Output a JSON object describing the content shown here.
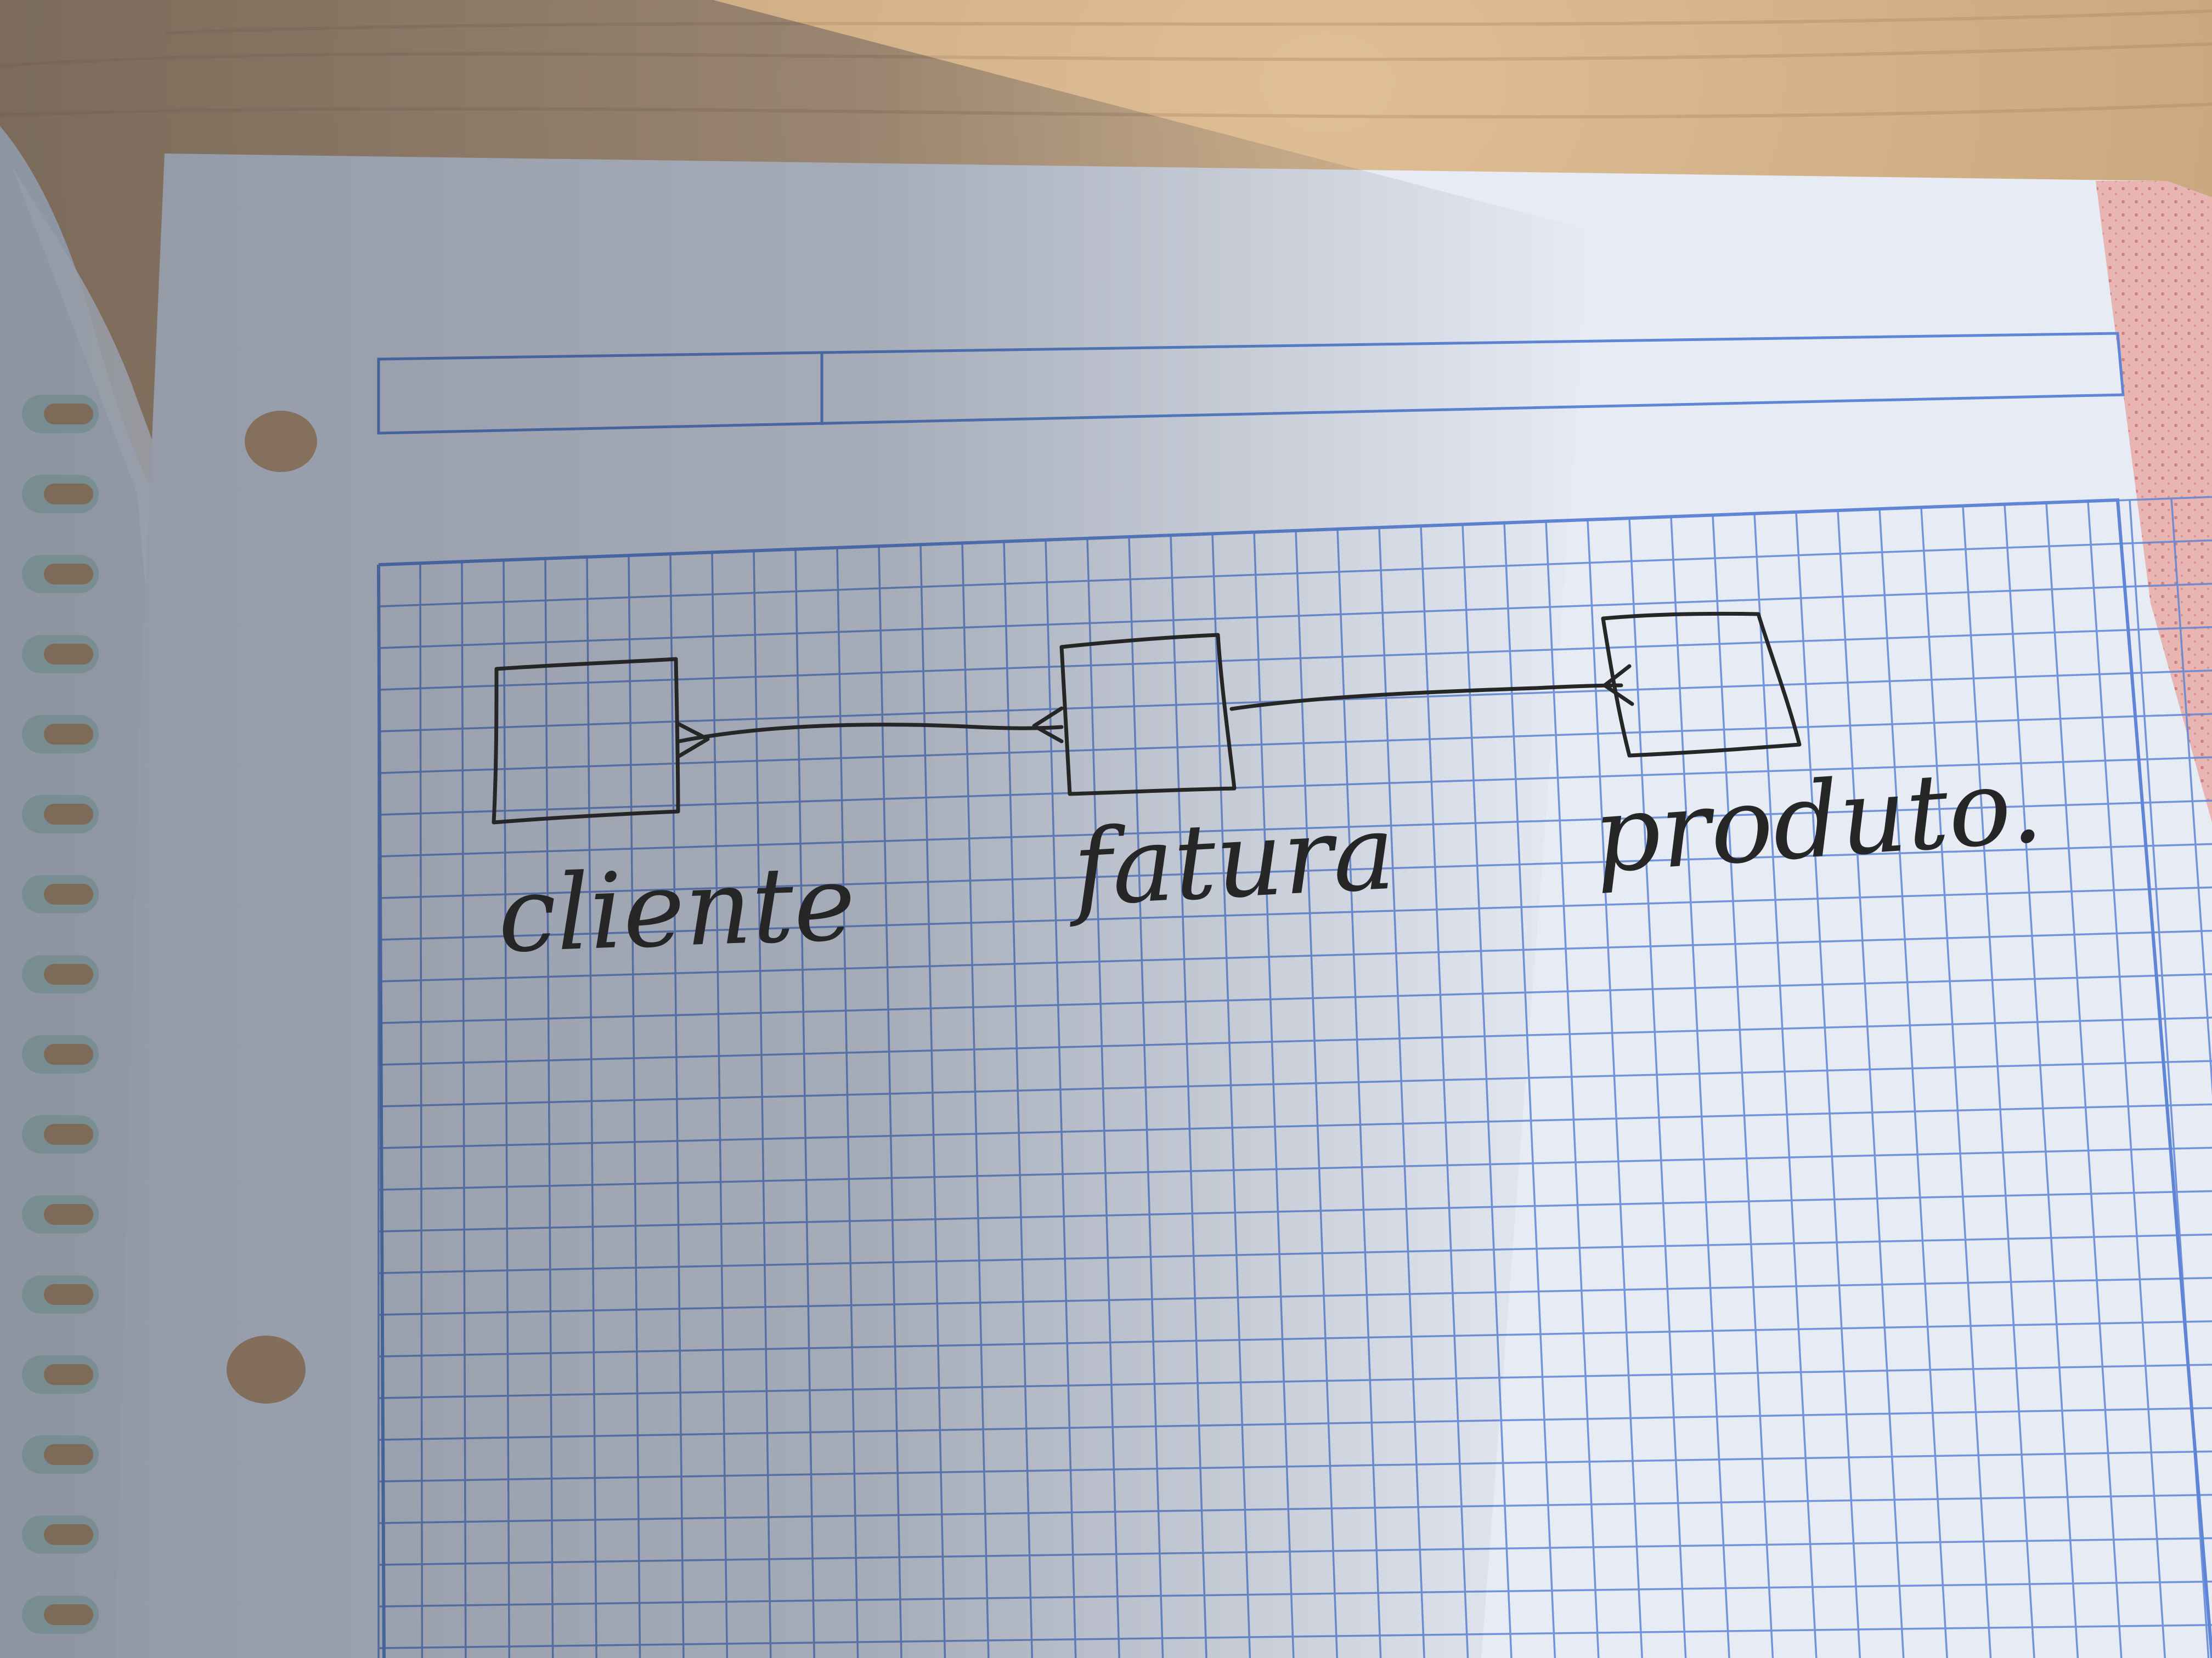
{
  "diagram": {
    "entities": [
      {
        "id": "cliente",
        "label": "cliente"
      },
      {
        "id": "fatura",
        "label": "fatura"
      },
      {
        "id": "produto",
        "label": "produto."
      }
    ],
    "relationships": [
      {
        "from": "cliente",
        "to": "fatura",
        "end_marker": "crow-foot"
      },
      {
        "from": "fatura",
        "to": "produto",
        "end_marker": "crow-foot"
      }
    ]
  },
  "colors": {
    "desk": "#c9a77f",
    "paper": "#e6ebf4",
    "grid": "#5f86d6",
    "ink": "#262626",
    "shadow": "#1c2538",
    "margin_edge": "#e5b4b4",
    "spiral_tab": "#b9d7d0"
  }
}
